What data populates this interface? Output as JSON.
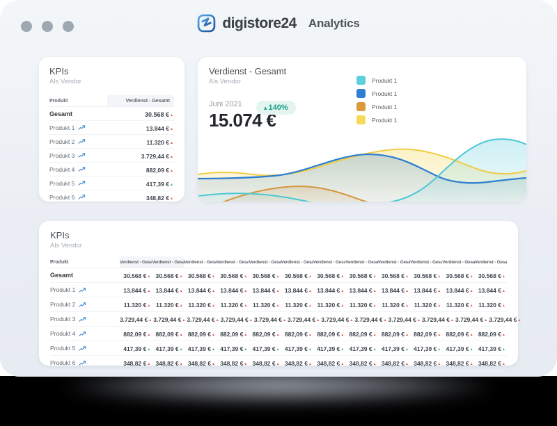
{
  "header": {
    "brand": "digistore24",
    "app": "Analytics"
  },
  "icons": {
    "trend_glyph": "▴",
    "up_glyph": "▴"
  },
  "trend_colors": {
    "up": "#2fae9f",
    "down": "#e2604d"
  },
  "theme": {
    "card_bg": "#ffffff",
    "window_bg": "#eaeef4",
    "accent_blue": "#2e7fd1",
    "badge_bg": "#e4f4ee",
    "badge_text": "#17a08c"
  },
  "kpi_left": {
    "title": "KPIs",
    "subtitle": "Als Vendor",
    "col_product": "Produkt",
    "col_value": "Verdienst - Gesamt",
    "rows": [
      {
        "label": "Gesamt",
        "value": "30.568 €",
        "trend": "down",
        "bold": true,
        "icon": false
      },
      {
        "label": "Produkt 1",
        "value": "13.844 €",
        "trend": "down",
        "bold": false,
        "icon": true
      },
      {
        "label": "Produkt 2",
        "value": "11.320 €",
        "trend": "down",
        "bold": false,
        "icon": true
      },
      {
        "label": "Produkt 3",
        "value": "3.729,44 €",
        "trend": "down",
        "bold": false,
        "icon": true
      },
      {
        "label": "Produkt 4",
        "value": "882,09 €",
        "trend": "down",
        "bold": false,
        "icon": true
      },
      {
        "label": "Produkt 5",
        "value": "417,39 €",
        "trend": "up",
        "bold": false,
        "icon": true
      },
      {
        "label": "Produkt 6",
        "value": "348,82 €",
        "trend": "down",
        "bold": false,
        "icon": true
      }
    ]
  },
  "chart_card": {
    "title": "Verdienst - Gesamt",
    "subtitle": "Als Vendor",
    "period": "Juni 2021",
    "amount": "15.074 €",
    "delta": "140%",
    "delta_dir": "up",
    "legend": [
      {
        "label": "Produkt 1",
        "color": "#5ed0dd"
      },
      {
        "label": "Produkt 1",
        "color": "#2e7fd1"
      },
      {
        "label": "Produkt 1",
        "color": "#dd9a3c"
      },
      {
        "label": "Produkt 1",
        "color": "#f7d957"
      }
    ]
  },
  "kpi_bottom": {
    "title": "KPIs",
    "subtitle": "Als Vendor",
    "col_product": "Produkt",
    "value_col_label": "Verdienst - Gesamt",
    "value_col_count": 12,
    "highlighted_cols": 2,
    "rows": [
      {
        "label": "Gesamt",
        "value": "30.568 €",
        "trend": "down",
        "bold": true,
        "icon": false
      },
      {
        "label": "Produkt 1",
        "value": "13.844 €",
        "trend": "down",
        "bold": false,
        "icon": true
      },
      {
        "label": "Produkt 2",
        "value": "11.320 €",
        "trend": "down",
        "bold": false,
        "icon": true
      },
      {
        "label": "Produkt 3",
        "value": "3.729,44 €",
        "trend": "down",
        "bold": false,
        "icon": true
      },
      {
        "label": "Produkt 4",
        "value": "882,09 €",
        "trend": "down",
        "bold": false,
        "icon": true
      },
      {
        "label": "Produkt 5",
        "value": "417,39 €",
        "trend": "up",
        "bold": false,
        "icon": true
      },
      {
        "label": "Produkt 6",
        "value": "348,82 €",
        "trend": "down",
        "bold": false,
        "icon": true
      }
    ]
  }
}
